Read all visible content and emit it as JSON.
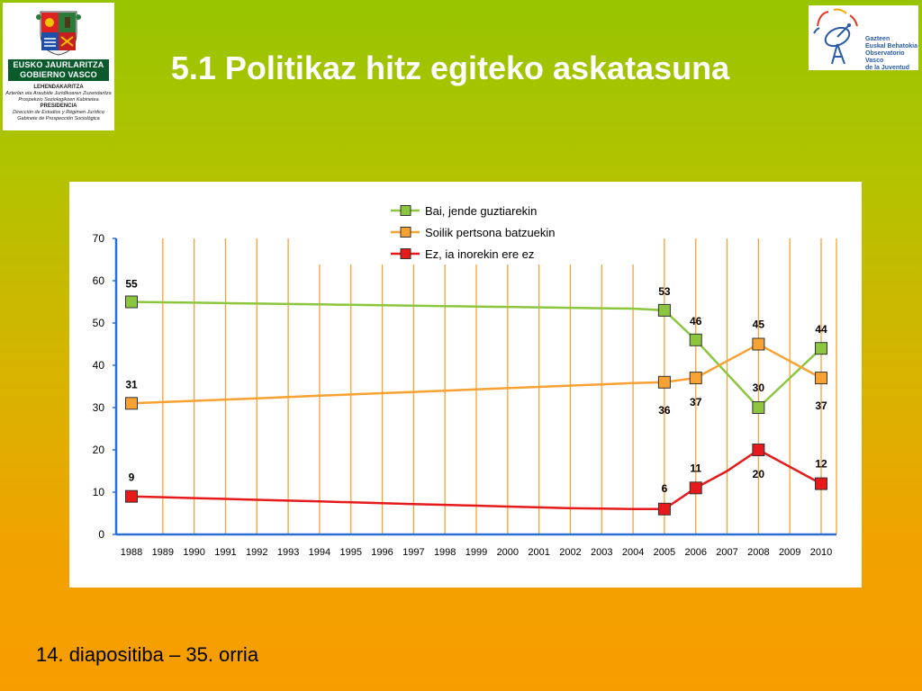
{
  "slide": {
    "title": "5.1 Politikaz hitz egiteko askatasuna",
    "footer": "14. diapositiba – 35. orria"
  },
  "logo_left": {
    "line1": "EUSKO JAURLARITZA",
    "line2": "GOBIERNO VASCO",
    "lines": [
      {
        "text": "LEHENDAKARITZA",
        "style": "b"
      },
      {
        "text": "Azterlan eta Araubide Juridikoaren Zuzendaritza",
        "style": "i"
      },
      {
        "text": "Prospekzio Soziologikoen Kabinetea",
        "style": "i"
      },
      {
        "text": "PRESIDENCIA",
        "style": "b"
      },
      {
        "text": "Dirección de Estudios y Régimen Jurídico",
        "style": "i"
      },
      {
        "text": "Gabinete de Prospección Sociológica",
        "style": "i"
      }
    ]
  },
  "logo_right": {
    "lines": [
      "Gazteen",
      "Euskal Behatokia",
      "Observatorio Vasco",
      "de la Juventud"
    ]
  },
  "chart_data": {
    "type": "line",
    "title": "",
    "xlabel": "",
    "ylabel": "",
    "ylim": [
      0,
      70
    ],
    "yticks": [
      0,
      10,
      20,
      30,
      40,
      50,
      60,
      70
    ],
    "grid": "vertical",
    "legend_position": "top-right",
    "categories": [
      "1988",
      "1989",
      "1990",
      "1991",
      "1992",
      "1993",
      "1994",
      "1995",
      "1996",
      "1997",
      "1998",
      "1999",
      "2000",
      "2001",
      "2002",
      "2003",
      "2004",
      "2005",
      "2006",
      "2007",
      "2008",
      "2009",
      "2010"
    ],
    "series": [
      {
        "name": "Bai, jende guztiarekin",
        "color": "#8cc63f",
        "marker_color": "#8cc63f",
        "values": [
          55,
          54.9,
          54.8,
          54.7,
          54.6,
          54.5,
          54.4,
          54.3,
          54.2,
          54.1,
          54.0,
          53.9,
          53.8,
          53.7,
          53.6,
          53.5,
          53.4,
          53,
          46,
          38,
          30,
          37,
          44
        ],
        "marked": [
          "1988",
          "2005",
          "2006",
          "2008",
          "2010"
        ],
        "labels": {
          "1988": "55",
          "2005": "53",
          "2006": "46",
          "2008": "30",
          "2010": "44"
        }
      },
      {
        "name": "Soilik pertsona batzuekin",
        "color": "#f7a233",
        "marker_color": "#f7a233",
        "values": [
          31,
          31.3,
          31.6,
          31.9,
          32.2,
          32.5,
          32.8,
          33.1,
          33.4,
          33.7,
          34.0,
          34.3,
          34.6,
          34.9,
          35.2,
          35.5,
          35.8,
          36,
          37,
          41,
          45,
          41,
          37
        ],
        "marked": [
          "1988",
          "2005",
          "2006",
          "2008",
          "2010"
        ],
        "labels": {
          "1988": "31",
          "2005": "36",
          "2006": "37",
          "2008": "45",
          "2010": "37"
        }
      },
      {
        "name": "Ez, ia inorekin ere ez",
        "color": "#e61a1a",
        "marker_color": "#e61a1a",
        "values": [
          9,
          8.8,
          8.6,
          8.4,
          8.2,
          8.0,
          7.8,
          7.6,
          7.4,
          7.2,
          7.0,
          6.8,
          6.6,
          6.4,
          6.2,
          6.1,
          6.0,
          6,
          11,
          15,
          20,
          16,
          12
        ],
        "marked": [
          "1988",
          "2005",
          "2006",
          "2008",
          "2010"
        ],
        "labels": {
          "1988": "9",
          "2005": "6",
          "2006": "11",
          "2008": "20",
          "2010": "12"
        }
      }
    ]
  }
}
